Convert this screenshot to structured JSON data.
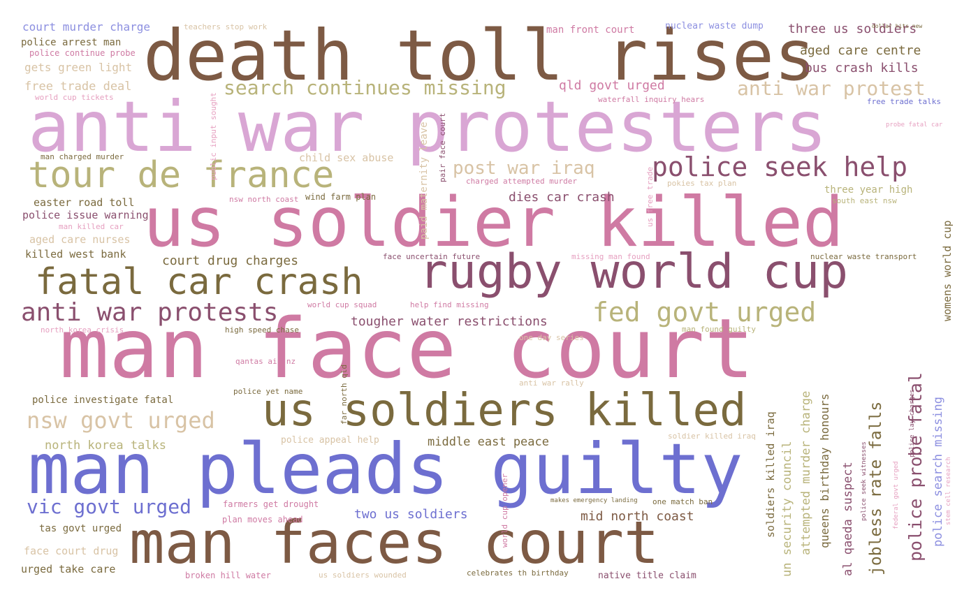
{
  "palette": {
    "brown": "#7d5a44",
    "mauve": "#d9a6d4",
    "pink": "#cf7aa3",
    "olive": "#b8b37a",
    "blue": "#6d6fd0",
    "plum": "#8a4f6e",
    "beige": "#d8c3a5",
    "darkolive": "#7a6a3e",
    "rose": "#e6a0c0",
    "lightblue": "#8c8fe0"
  },
  "words": [
    {
      "text": "death toll rises",
      "color": "brown"
    },
    {
      "text": "anti war protesters",
      "color": "mauve"
    },
    {
      "text": "us soldier killed",
      "color": "pink"
    },
    {
      "text": "man face court",
      "color": "pink"
    },
    {
      "text": "man pleads guilty",
      "color": "blue"
    },
    {
      "text": "man faces court",
      "color": "brown"
    },
    {
      "text": "rugby world cup",
      "color": "plum"
    },
    {
      "text": "fatal car crash",
      "color": "darkolive"
    },
    {
      "text": "tour de france",
      "color": "olive"
    },
    {
      "text": "us soldiers killed",
      "color": "darkolive"
    },
    {
      "text": "police seek help",
      "color": "plum"
    },
    {
      "text": "anti war protests",
      "color": "plum"
    },
    {
      "text": "fed govt urged",
      "color": "olive"
    },
    {
      "text": "nsw govt urged",
      "color": "beige"
    },
    {
      "text": "search continues missing",
      "color": "olive"
    },
    {
      "text": "anti war protest",
      "color": "beige"
    },
    {
      "text": "post war iraq",
      "color": "beige"
    },
    {
      "text": "vic govt urged",
      "color": "blue"
    },
    {
      "text": "three us soldiers",
      "color": "plum"
    },
    {
      "text": "aged care centre",
      "color": "darkolive"
    },
    {
      "text": "bus crash kills",
      "color": "plum"
    },
    {
      "text": "qld govt urged",
      "color": "pink"
    },
    {
      "text": "court murder charge",
      "color": "lightblue"
    },
    {
      "text": "teachers stop work",
      "color": "beige"
    },
    {
      "text": "man front court",
      "color": "pink"
    },
    {
      "text": "nuclear waste dump",
      "color": "lightblue"
    },
    {
      "text": "police arrest man",
      "color": "darkolive"
    },
    {
      "text": "police continue probe",
      "color": "pink"
    },
    {
      "text": "gets green light",
      "color": "beige"
    },
    {
      "text": "free trade deal",
      "color": "beige"
    },
    {
      "text": "world cup tickets",
      "color": "rose"
    },
    {
      "text": "waterfall inquiry hears",
      "color": "pink"
    },
    {
      "text": "dollar hits new",
      "color": "darkolive"
    },
    {
      "text": "free trade talks",
      "color": "blue"
    },
    {
      "text": "probe fatal car",
      "color": "rose"
    },
    {
      "text": "public input sought",
      "color": "rose"
    },
    {
      "text": "man charged murder",
      "color": "darkolive"
    },
    {
      "text": "child sex abuse",
      "color": "beige"
    },
    {
      "text": "paid maternity leave",
      "color": "beige"
    },
    {
      "text": "pair face court",
      "color": "plum"
    },
    {
      "text": "charged attempted murder",
      "color": "pink"
    },
    {
      "text": "us free trade",
      "color": "rose"
    },
    {
      "text": "pokies tax plan",
      "color": "beige"
    },
    {
      "text": "three year high",
      "color": "olive"
    },
    {
      "text": "south east nsw",
      "color": "olive"
    },
    {
      "text": "womens world cup",
      "color": "darkolive"
    },
    {
      "text": "easter road toll",
      "color": "darkolive"
    },
    {
      "text": "police issue warning",
      "color": "plum"
    },
    {
      "text": "nsw north coast",
      "color": "pink"
    },
    {
      "text": "wind farm plan",
      "color": "darkolive"
    },
    {
      "text": "dies car crash",
      "color": "plum"
    },
    {
      "text": "man killed car",
      "color": "rose"
    },
    {
      "text": "aged care nurses",
      "color": "beige"
    },
    {
      "text": "killed west bank",
      "color": "darkolive"
    },
    {
      "text": "court drug charges",
      "color": "darkolive"
    },
    {
      "text": "face uncertain future",
      "color": "plum"
    },
    {
      "text": "missing man found",
      "color": "rose"
    },
    {
      "text": "nuclear waste transport",
      "color": "darkolive"
    },
    {
      "text": "world cup squad",
      "color": "pink"
    },
    {
      "text": "help find missing",
      "color": "pink"
    },
    {
      "text": "tougher water restrictions",
      "color": "plum"
    },
    {
      "text": "north korea crisis",
      "color": "rose"
    },
    {
      "text": "high speed chase",
      "color": "darkolive"
    },
    {
      "text": "man found guilty",
      "color": "olive"
    },
    {
      "text": "one day series",
      "color": "beige"
    },
    {
      "text": "qantas air nz",
      "color": "pink"
    },
    {
      "text": "police yet name",
      "color": "darkolive"
    },
    {
      "text": "far north qld",
      "color": "darkolive"
    },
    {
      "text": "anti war rally",
      "color": "beige"
    },
    {
      "text": "police investigate fatal",
      "color": "darkolive"
    },
    {
      "text": "north korea talks",
      "color": "olive"
    },
    {
      "text": "police appeal help",
      "color": "beige"
    },
    {
      "text": "middle east peace",
      "color": "darkolive"
    },
    {
      "text": "soldier killed iraq",
      "color": "beige"
    },
    {
      "text": "farmers get drought",
      "color": "pink"
    },
    {
      "text": "makes emergency landing",
      "color": "darkolive"
    },
    {
      "text": "one match ban",
      "color": "darkolive"
    },
    {
      "text": "two us soldiers",
      "color": "blue"
    },
    {
      "text": "plan moves ahead",
      "color": "pink"
    },
    {
      "text": "mid north coast",
      "color": "brown"
    },
    {
      "text": "tas govt urged",
      "color": "darkolive"
    },
    {
      "text": "face court drug",
      "color": "beige"
    },
    {
      "text": "urged take care",
      "color": "darkolive"
    },
    {
      "text": "broken hill water",
      "color": "pink"
    },
    {
      "text": "us soldiers wounded",
      "color": "beige"
    },
    {
      "text": "celebrates th birthday",
      "color": "darkolive"
    },
    {
      "text": "native title claim",
      "color": "plum"
    },
    {
      "text": "world cup opener",
      "color": "pink"
    },
    {
      "text": "soldiers killed iraq",
      "color": "darkolive"
    },
    {
      "text": "un security council",
      "color": "olive"
    },
    {
      "text": "attempted murder charge",
      "color": "olive"
    },
    {
      "text": "queens birthday honours",
      "color": "darkolive"
    },
    {
      "text": "al qaeda suspect",
      "color": "plum"
    },
    {
      "text": "jobless rate falls",
      "color": "darkolive"
    },
    {
      "text": "police probe fatal",
      "color": "plum"
    },
    {
      "text": "police search missing",
      "color": "lightblue"
    },
    {
      "text": "police seek witnesses",
      "color": "plum"
    },
    {
      "text": "federal govt urged",
      "color": "rose"
    },
    {
      "text": "police lay charges",
      "color": "plum"
    },
    {
      "text": "stem cell research",
      "color": "rose"
    }
  ]
}
